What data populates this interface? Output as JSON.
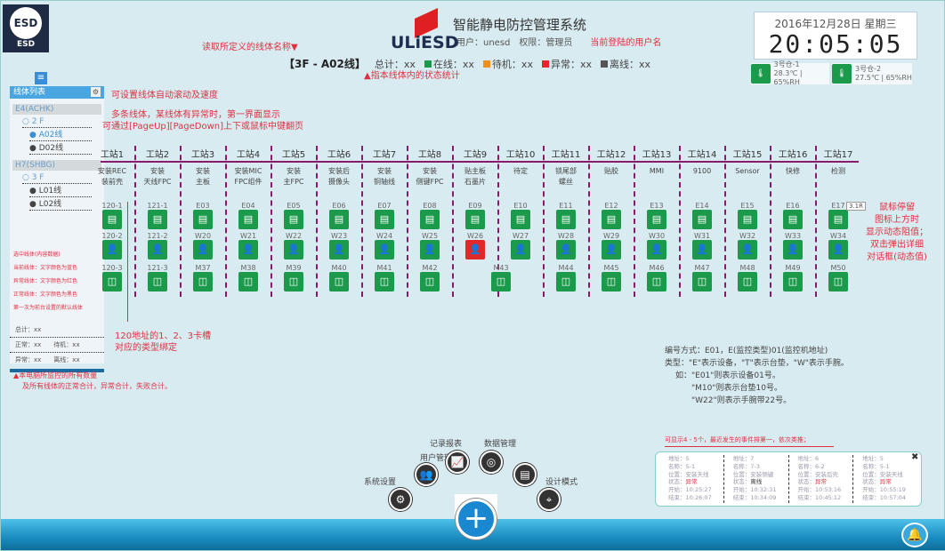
{
  "app": {
    "title": "智能静电防控管理系统",
    "brand": "ULiESD",
    "logo": "ESD",
    "user_line": "用户：unesd　权限：管理员",
    "user_note": "当前登陆的用户名"
  },
  "clock": {
    "date": "2016年12月28日 星期三",
    "time": "20:05:05"
  },
  "sensors": [
    {
      "name": "3号仓-1",
      "value": "28.3℃ | 65%RH"
    },
    {
      "name": "3号仓-2",
      "value": "27.5℃ | 65%RH"
    }
  ],
  "line_name_note": "读取所定义的线体名称▼",
  "stats": {
    "line": "【3F - A02线】",
    "total": "总计：xx",
    "online": "在线：xx",
    "standby": "待机：xx",
    "alarm": "异常：xx",
    "offline": "离线：xx",
    "note": "▲指本线体内的状态统计",
    "colors": {
      "online": "#1a9a4a",
      "standby": "#f0901a",
      "alarm": "#e02828",
      "offline": "#555555"
    }
  },
  "sidebar": {
    "title": "线体列表",
    "groups": [
      {
        "name": "E4(ACHK)",
        "floor": "○ 2 F",
        "lines": [
          "● A02线",
          "● D02线"
        ]
      },
      {
        "name": "H7(SHBG)",
        "floor": "○ 3 F",
        "lines": [
          "● L01线",
          "● L02线"
        ]
      }
    ],
    "legend": [
      "选中线体(内容数据)",
      "当前线体：文字颜色为蓝色",
      "异常线体：文字颜色为红色",
      "正常线体：文字颜色为黑色",
      "第一次为前台设置的默认线体"
    ],
    "total": "总计：xx",
    "normal": "正常：xx",
    "standby": "待机：xx",
    "alarm": "异常：xx",
    "offline": "离线：xx"
  },
  "notes": {
    "scroll": "可设置线体自动滚动及速度",
    "multi": "多条线体，某线体有异常时，第一界面显示",
    "paging": "可通过[PageUp][PageDown]上下或鼠标中键翻页",
    "slot": "120地址的1、2、3卡槽",
    "slot2": "对应的类型绑定",
    "hover": [
      "鼠标停留",
      "图标上方时",
      "显示动态阻值；",
      "双击弹出详细",
      "对话框(动态值)"
    ],
    "summary1": "▲本电脑所监控的所有数量",
    "summary2": "及所有线体的正常合计，异常合计，失败合计。",
    "code": [
      "编号方式：E01，E(监控类型)01(监控机地址)",
      "类型：\"E\"表示设备，\"T\"表示台垫，\"W\"表示手腕。",
      "如：\"E01\"则表示设备01号。",
      "\"M10\"则表示台垫10号。",
      "\"W22\"则表示手腕带22号。"
    ],
    "events": "可显示4 - 5个，最近发生的事件排第一，依次类推；",
    "tooltip": "3.1R"
  },
  "stations": [
    {
      "name": "工站1",
      "desc": [
        "安装REC",
        "装前壳"
      ],
      "e": "120-1",
      "w": "120-2",
      "m": "120-3"
    },
    {
      "name": "工站2",
      "desc": [
        "安装",
        "天线FPC"
      ],
      "e": "121-1",
      "w": "121-2",
      "m": "121-3"
    },
    {
      "name": "工站3",
      "desc": [
        "安装",
        "主板"
      ],
      "e": "E03",
      "w": "W20",
      "m": "M37"
    },
    {
      "name": "工站4",
      "desc": [
        "安装MIC",
        "FPC组件"
      ],
      "e": "E04",
      "w": "W21",
      "m": "M38"
    },
    {
      "name": "工站5",
      "desc": [
        "安装",
        "主FPC"
      ],
      "e": "E05",
      "w": "W22",
      "m": "M39"
    },
    {
      "name": "工站6",
      "desc": [
        "安装后",
        "摄像头"
      ],
      "e": "E06",
      "w": "W23",
      "m": "M40"
    },
    {
      "name": "工站7",
      "desc": [
        "安装",
        "铜轴线"
      ],
      "e": "E07",
      "w": "W24",
      "m": "M41"
    },
    {
      "name": "工站8",
      "desc": [
        "安装",
        "侧键FPC"
      ],
      "e": "E08",
      "w": "W25",
      "m": "M42"
    },
    {
      "name": "工站9",
      "desc": [
        "贴主板",
        "石墨片"
      ],
      "e": "E09",
      "w": "W26",
      "w_status": "alarm",
      "m": ""
    },
    {
      "name": "工站10",
      "desc": [
        "待定"
      ],
      "e": "E10",
      "w": "W27",
      "m": "M43"
    },
    {
      "name": "工站11",
      "desc": [
        "锁尾部",
        "螺丝"
      ],
      "e": "E11",
      "w": "W28",
      "m": "M44"
    },
    {
      "name": "工站12",
      "desc": [
        "贴胶"
      ],
      "e": "E12",
      "w": "W29",
      "m": "M45"
    },
    {
      "name": "工站13",
      "desc": [
        "MMI"
      ],
      "e": "E13",
      "w": "W30",
      "m": "M46"
    },
    {
      "name": "工站14",
      "desc": [
        "9100"
      ],
      "e": "E14",
      "w": "W31",
      "m": "M47"
    },
    {
      "name": "工站15",
      "desc": [
        "Sensor"
      ],
      "e": "E15",
      "w": "W32",
      "m": "M48"
    },
    {
      "name": "工站16",
      "desc": [
        "快修"
      ],
      "e": "E16",
      "w": "W33",
      "m": "M49"
    },
    {
      "name": "工站17",
      "desc": [
        "检测"
      ],
      "e": "E17",
      "w": "W34",
      "m": "M50"
    }
  ],
  "events": [
    {
      "addr": "地址：5",
      "name": "名称：5-1",
      "pos": "位置：安装天线",
      "status": "异常",
      "start": "开始：10:25:27",
      "end": "结束：10:26:07"
    },
    {
      "addr": "地址：7",
      "name": "名称：7-3",
      "pos": "位置：安装侧键",
      "status": "离线",
      "start": "开始：10:32:31",
      "end": "结束：10:34:09"
    },
    {
      "addr": "地址：6",
      "name": "名称：6-2",
      "pos": "位置：安装后壳",
      "status": "异常",
      "start": "开始：10:53:16",
      "end": "结束：10:45:12"
    },
    {
      "addr": "地址：5",
      "name": "名称：5-1",
      "pos": "位置：安装天线",
      "status": "异常",
      "start": "开始：10:55:19",
      "end": "结束：10:57:04"
    }
  ],
  "status_label": "状态：",
  "menu": [
    {
      "label": "系统设置",
      "icon": "gears-icon",
      "glyph": "⚙"
    },
    {
      "label": "用户管理",
      "icon": "users-icon",
      "glyph": "👥"
    },
    {
      "label": "记录报表",
      "icon": "chart-icon",
      "glyph": "📈"
    },
    {
      "label": "数据管理",
      "icon": "database-icon",
      "glyph": "◎"
    },
    {
      "label": "",
      "icon": "document-icon",
      "glyph": "▤"
    },
    {
      "label": "设计模式",
      "icon": "map-pin-icon",
      "glyph": "⌖"
    }
  ]
}
